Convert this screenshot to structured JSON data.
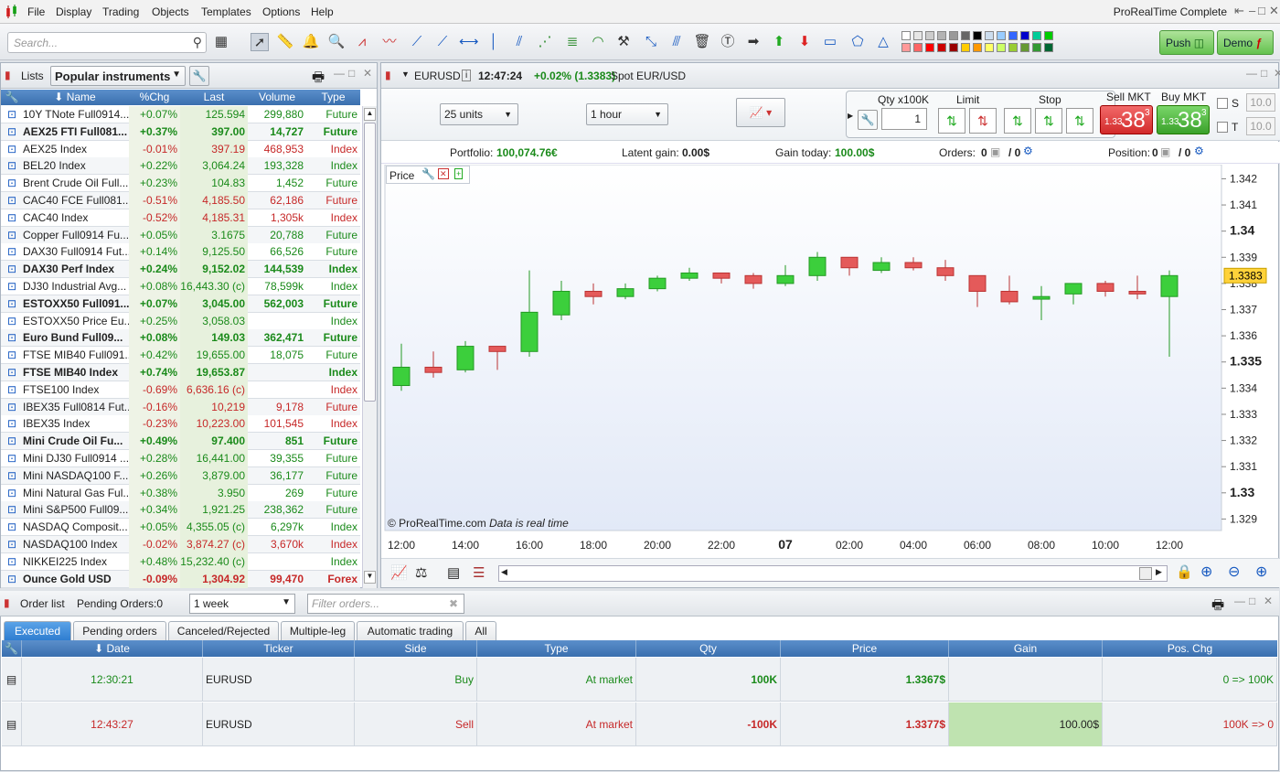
{
  "menu": {
    "items": [
      "File",
      "Display",
      "Trading",
      "Objects",
      "Templates",
      "Options",
      "Help"
    ],
    "app_title": "ProRealTime Complete"
  },
  "toolbar": {
    "search_placeholder": "Search...",
    "push_label": "Push",
    "demo_label": "Demo"
  },
  "lists": {
    "title": "Lists",
    "dropdown": "Popular instruments",
    "columns": [
      "Name",
      "%Chg",
      "Last",
      "Volume",
      "Type"
    ],
    "rows": [
      {
        "name": "10Y TNote Full0914...",
        "chg": "+0.07%",
        "last": "125.594",
        "vol": "299,880",
        "type": "Future",
        "bold": false,
        "dir": "up"
      },
      {
        "name": "AEX25 FTI Full081...",
        "chg": "+0.37%",
        "last": "397.00",
        "vol": "14,727",
        "type": "Future",
        "bold": true,
        "dir": "up"
      },
      {
        "name": "AEX25 Index",
        "chg": "-0.01%",
        "last": "397.19",
        "vol": "468,953",
        "type": "Index",
        "bold": false,
        "dir": "down"
      },
      {
        "name": "BEL20 Index",
        "chg": "+0.22%",
        "last": "3,064.24",
        "vol": "193,328",
        "type": "Index",
        "bold": false,
        "dir": "up"
      },
      {
        "name": "Brent Crude Oil Full...",
        "chg": "+0.23%",
        "last": "104.83",
        "vol": "1,452",
        "type": "Future",
        "bold": false,
        "dir": "up"
      },
      {
        "name": "CAC40 FCE Full081...",
        "chg": "-0.51%",
        "last": "4,185.50",
        "vol": "62,186",
        "type": "Future",
        "bold": false,
        "dir": "down"
      },
      {
        "name": "CAC40 Index",
        "chg": "-0.52%",
        "last": "4,185.31",
        "vol": "1,305k",
        "type": "Index",
        "bold": false,
        "dir": "down"
      },
      {
        "name": "Copper Full0914 Fu...",
        "chg": "+0.05%",
        "last": "3.1675",
        "vol": "20,788",
        "type": "Future",
        "bold": false,
        "dir": "up"
      },
      {
        "name": "DAX30 Full0914 Fut...",
        "chg": "+0.14%",
        "last": "9,125.50",
        "vol": "66,526",
        "type": "Future",
        "bold": false,
        "dir": "up"
      },
      {
        "name": "DAX30 Perf Index",
        "chg": "+0.24%",
        "last": "9,152.02",
        "vol": "144,539",
        "type": "Index",
        "bold": true,
        "dir": "up"
      },
      {
        "name": "DJ30 Industrial Avg...",
        "chg": "+0.08%",
        "last": "16,443.30 (c)",
        "vol": "78,599k",
        "type": "Index",
        "bold": false,
        "dir": "up"
      },
      {
        "name": "ESTOXX50 Full091...",
        "chg": "+0.07%",
        "last": "3,045.00",
        "vol": "562,003",
        "type": "Future",
        "bold": true,
        "dir": "up"
      },
      {
        "name": "ESTOXX50 Price Eu...",
        "chg": "+0.25%",
        "last": "3,058.03",
        "vol": "",
        "type": "Index",
        "bold": false,
        "dir": "up"
      },
      {
        "name": "Euro Bund Full09...",
        "chg": "+0.08%",
        "last": "149.03",
        "vol": "362,471",
        "type": "Future",
        "bold": true,
        "dir": "up"
      },
      {
        "name": "FTSE MIB40 Full091...",
        "chg": "+0.42%",
        "last": "19,655.00",
        "vol": "18,075",
        "type": "Future",
        "bold": false,
        "dir": "up"
      },
      {
        "name": "FTSE MIB40 Index",
        "chg": "+0.74%",
        "last": "19,653.87",
        "vol": "",
        "type": "Index",
        "bold": true,
        "dir": "up"
      },
      {
        "name": "FTSE100 Index",
        "chg": "-0.69%",
        "last": "6,636.16 (c)",
        "vol": "",
        "type": "Index",
        "bold": false,
        "dir": "down"
      },
      {
        "name": "IBEX35 Full0814 Fut...",
        "chg": "-0.16%",
        "last": "10,219",
        "vol": "9,178",
        "type": "Future",
        "bold": false,
        "dir": "down"
      },
      {
        "name": "IBEX35 Index",
        "chg": "-0.23%",
        "last": "10,223.00",
        "vol": "101,545",
        "type": "Index",
        "bold": false,
        "dir": "down"
      },
      {
        "name": "Mini Crude Oil Fu...",
        "chg": "+0.49%",
        "last": "97.400",
        "vol": "851",
        "type": "Future",
        "bold": true,
        "dir": "up"
      },
      {
        "name": "Mini DJ30 Full0914 ...",
        "chg": "+0.28%",
        "last": "16,441.00",
        "vol": "39,355",
        "type": "Future",
        "bold": false,
        "dir": "up"
      },
      {
        "name": "Mini NASDAQ100 F...",
        "chg": "+0.26%",
        "last": "3,879.00",
        "vol": "36,177",
        "type": "Future",
        "bold": false,
        "dir": "up"
      },
      {
        "name": "Mini Natural Gas Ful...",
        "chg": "+0.38%",
        "last": "3.950",
        "vol": "269",
        "type": "Future",
        "bold": false,
        "dir": "up"
      },
      {
        "name": "Mini S&P500 Full09...",
        "chg": "+0.34%",
        "last": "1,921.25",
        "vol": "238,362",
        "type": "Future",
        "bold": false,
        "dir": "up"
      },
      {
        "name": "NASDAQ Composit...",
        "chg": "+0.05%",
        "last": "4,355.05 (c)",
        "vol": "6,297k",
        "type": "Index",
        "bold": false,
        "dir": "up"
      },
      {
        "name": "NASDAQ100 Index",
        "chg": "-0.02%",
        "last": "3,874.27 (c)",
        "vol": "3,670k",
        "type": "Index",
        "bold": false,
        "dir": "down"
      },
      {
        "name": "NIKKEI225 Index",
        "chg": "+0.48%",
        "last": "15,232.40 (c)",
        "vol": "",
        "type": "Index",
        "bold": false,
        "dir": "up"
      },
      {
        "name": "Ounce Gold USD",
        "chg": "-0.09%",
        "last": "1,304.92",
        "vol": "99,470",
        "type": "Forex",
        "bold": true,
        "dir": "down"
      }
    ]
  },
  "chart": {
    "symbol": "EURUSD",
    "info_icon": "i",
    "time": "12:47:24",
    "change": "+0.02% (1.3383)",
    "desc": "Spot EUR/USD",
    "units": "25 units",
    "timeframe": "1 hour",
    "qty_label": "Qty x100K",
    "qty_value": "1",
    "limit_label": "Limit",
    "stop_label": "Stop",
    "sell_label": "Sell MKT",
    "buy_label": "Buy MKT",
    "sell_prefix": "1.33",
    "sell_big": "38",
    "sell_sup": "3",
    "buy_prefix": "1.33",
    "buy_big": "38",
    "buy_sup": "3",
    "s_label": "S",
    "t_label": "T",
    "s_value": "10.0",
    "t_value": "10.0",
    "portfolio_label": "Portfolio:",
    "portfolio_value": "100,074.76€",
    "latent_label": "Latent gain:",
    "latent_value": "0.00$",
    "gain_today_label": "Gain today:",
    "gain_today_value": "100.00$",
    "orders_label": "Orders:",
    "orders_value": "0",
    "orders_value2": "/ 0",
    "position_label": "Position:",
    "position_value": "0",
    "position_value2": "/ 0",
    "price_label": "Price",
    "copyright": "© ProRealTime.com",
    "realtime": "Data is real time",
    "last_price": "1.3383",
    "colors": {
      "up": "#3ccf3c",
      "down": "#e45a5a"
    }
  },
  "chart_data": {
    "type": "candlestick",
    "yticks": [
      "1.342",
      "1.341",
      "1.34",
      "1.339",
      "1.338",
      "1.337",
      "1.336",
      "1.335",
      "1.334",
      "1.333",
      "1.332",
      "1.331",
      "1.33",
      "1.329"
    ],
    "yticks_bold": [
      "1.34",
      "1.335",
      "1.33"
    ],
    "yticks_values": [
      1.342,
      1.341,
      1.34,
      1.339,
      1.338,
      1.337,
      1.336,
      1.335,
      1.334,
      1.333,
      1.332,
      1.331,
      1.33,
      1.329
    ],
    "ylim": [
      1.3287,
      1.3424
    ],
    "xticks": [
      "12:00",
      "14:00",
      "16:00",
      "18:00",
      "20:00",
      "22:00",
      "07",
      "02:00",
      "04:00",
      "06:00",
      "08:00",
      "10:00",
      "12:00"
    ],
    "candles": [
      {
        "o": 1.3341,
        "h": 1.3357,
        "l": 1.3339,
        "c": 1.3348
      },
      {
        "o": 1.3348,
        "h": 1.3354,
        "l": 1.3344,
        "c": 1.3346
      },
      {
        "o": 1.3347,
        "h": 1.3358,
        "l": 1.3346,
        "c": 1.3356
      },
      {
        "o": 1.3356,
        "h": 1.3356,
        "l": 1.3347,
        "c": 1.3354
      },
      {
        "o": 1.3354,
        "h": 1.3385,
        "l": 1.3352,
        "c": 1.3369
      },
      {
        "o": 1.3368,
        "h": 1.3381,
        "l": 1.3366,
        "c": 1.3377
      },
      {
        "o": 1.3377,
        "h": 1.338,
        "l": 1.3372,
        "c": 1.3375
      },
      {
        "o": 1.3375,
        "h": 1.338,
        "l": 1.3374,
        "c": 1.3378
      },
      {
        "o": 1.3378,
        "h": 1.3383,
        "l": 1.3377,
        "c": 1.3382
      },
      {
        "o": 1.3382,
        "h": 1.3386,
        "l": 1.3381,
        "c": 1.3384
      },
      {
        "o": 1.3384,
        "h": 1.3384,
        "l": 1.338,
        "c": 1.3382
      },
      {
        "o": 1.3383,
        "h": 1.3384,
        "l": 1.3378,
        "c": 1.338
      },
      {
        "o": 1.338,
        "h": 1.3387,
        "l": 1.3379,
        "c": 1.3383
      },
      {
        "o": 1.3383,
        "h": 1.3392,
        "l": 1.3381,
        "c": 1.339
      },
      {
        "o": 1.339,
        "h": 1.339,
        "l": 1.3383,
        "c": 1.3386
      },
      {
        "o": 1.3385,
        "h": 1.339,
        "l": 1.3384,
        "c": 1.3388
      },
      {
        "o": 1.3388,
        "h": 1.339,
        "l": 1.3385,
        "c": 1.3386
      },
      {
        "o": 1.3386,
        "h": 1.3389,
        "l": 1.3381,
        "c": 1.3383
      },
      {
        "o": 1.3383,
        "h": 1.3383,
        "l": 1.3371,
        "c": 1.3377
      },
      {
        "o": 1.3377,
        "h": 1.3383,
        "l": 1.3372,
        "c": 1.3373
      },
      {
        "o": 1.3374,
        "h": 1.3379,
        "l": 1.3366,
        "c": 1.3375
      },
      {
        "o": 1.3376,
        "h": 1.338,
        "l": 1.3372,
        "c": 1.338
      },
      {
        "o": 1.338,
        "h": 1.3381,
        "l": 1.3375,
        "c": 1.3377
      },
      {
        "o": 1.3377,
        "h": 1.3383,
        "l": 1.3374,
        "c": 1.3376
      },
      {
        "o": 1.3375,
        "h": 1.3385,
        "l": 1.3352,
        "c": 1.3383
      }
    ]
  },
  "orders": {
    "title": "Order list",
    "pending_label": "Pending Orders:",
    "pending_value": "0",
    "period": "1 week",
    "filter_placeholder": "Filter orders...",
    "tabs": [
      "Executed",
      "Pending orders",
      "Canceled/Rejected",
      "Multiple-leg",
      "Automatic trading",
      "All"
    ],
    "columns": [
      "Date",
      "Ticker",
      "Side",
      "Type",
      "Qty",
      "Price",
      "Gain",
      "Pos. Chg"
    ],
    "rows": [
      {
        "date": "12:30:21",
        "ticker": "EURUSD",
        "side": "Buy",
        "type": "At market",
        "qty": "100K",
        "price": "1.3367$",
        "gain": "",
        "pos": "0 => 100K",
        "dir": "up"
      },
      {
        "date": "12:43:27",
        "ticker": "EURUSD",
        "side": "Sell",
        "type": "At market",
        "qty": "-100K",
        "price": "1.3377$",
        "gain": "100.00$",
        "pos": "100K => 0",
        "dir": "down"
      }
    ]
  }
}
